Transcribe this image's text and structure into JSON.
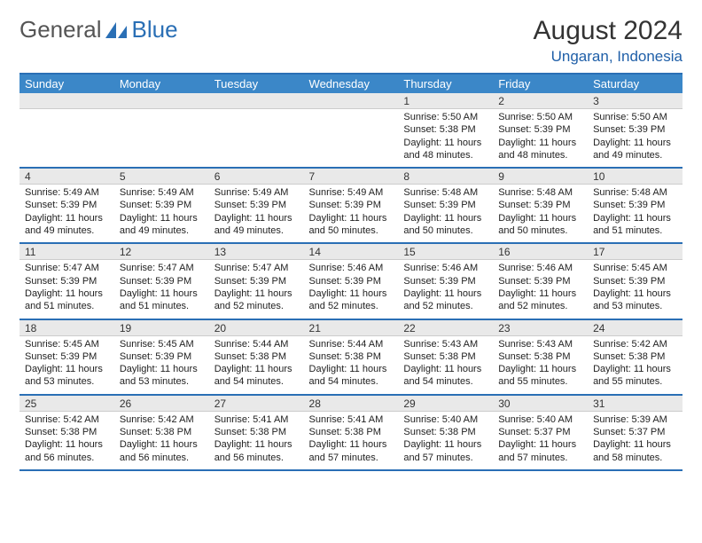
{
  "brand": {
    "part1": "General",
    "part2": "Blue",
    "logo_color": "#2a6fb5"
  },
  "title": {
    "month": "August 2024",
    "location": "Ungaran, Indonesia"
  },
  "colors": {
    "header_bg": "#3b87c8",
    "accent": "#2a6fb5",
    "daynum_bg": "#e9e9e9"
  },
  "day_headers": [
    "Sunday",
    "Monday",
    "Tuesday",
    "Wednesday",
    "Thursday",
    "Friday",
    "Saturday"
  ],
  "weeks": [
    [
      null,
      null,
      null,
      null,
      {
        "n": "1",
        "sr": "Sunrise: 5:50 AM",
        "ss": "Sunset: 5:38 PM",
        "d1": "Daylight: 11 hours",
        "d2": "and 48 minutes."
      },
      {
        "n": "2",
        "sr": "Sunrise: 5:50 AM",
        "ss": "Sunset: 5:39 PM",
        "d1": "Daylight: 11 hours",
        "d2": "and 48 minutes."
      },
      {
        "n": "3",
        "sr": "Sunrise: 5:50 AM",
        "ss": "Sunset: 5:39 PM",
        "d1": "Daylight: 11 hours",
        "d2": "and 49 minutes."
      }
    ],
    [
      {
        "n": "4",
        "sr": "Sunrise: 5:49 AM",
        "ss": "Sunset: 5:39 PM",
        "d1": "Daylight: 11 hours",
        "d2": "and 49 minutes."
      },
      {
        "n": "5",
        "sr": "Sunrise: 5:49 AM",
        "ss": "Sunset: 5:39 PM",
        "d1": "Daylight: 11 hours",
        "d2": "and 49 minutes."
      },
      {
        "n": "6",
        "sr": "Sunrise: 5:49 AM",
        "ss": "Sunset: 5:39 PM",
        "d1": "Daylight: 11 hours",
        "d2": "and 49 minutes."
      },
      {
        "n": "7",
        "sr": "Sunrise: 5:49 AM",
        "ss": "Sunset: 5:39 PM",
        "d1": "Daylight: 11 hours",
        "d2": "and 50 minutes."
      },
      {
        "n": "8",
        "sr": "Sunrise: 5:48 AM",
        "ss": "Sunset: 5:39 PM",
        "d1": "Daylight: 11 hours",
        "d2": "and 50 minutes."
      },
      {
        "n": "9",
        "sr": "Sunrise: 5:48 AM",
        "ss": "Sunset: 5:39 PM",
        "d1": "Daylight: 11 hours",
        "d2": "and 50 minutes."
      },
      {
        "n": "10",
        "sr": "Sunrise: 5:48 AM",
        "ss": "Sunset: 5:39 PM",
        "d1": "Daylight: 11 hours",
        "d2": "and 51 minutes."
      }
    ],
    [
      {
        "n": "11",
        "sr": "Sunrise: 5:47 AM",
        "ss": "Sunset: 5:39 PM",
        "d1": "Daylight: 11 hours",
        "d2": "and 51 minutes."
      },
      {
        "n": "12",
        "sr": "Sunrise: 5:47 AM",
        "ss": "Sunset: 5:39 PM",
        "d1": "Daylight: 11 hours",
        "d2": "and 51 minutes."
      },
      {
        "n": "13",
        "sr": "Sunrise: 5:47 AM",
        "ss": "Sunset: 5:39 PM",
        "d1": "Daylight: 11 hours",
        "d2": "and 52 minutes."
      },
      {
        "n": "14",
        "sr": "Sunrise: 5:46 AM",
        "ss": "Sunset: 5:39 PM",
        "d1": "Daylight: 11 hours",
        "d2": "and 52 minutes."
      },
      {
        "n": "15",
        "sr": "Sunrise: 5:46 AM",
        "ss": "Sunset: 5:39 PM",
        "d1": "Daylight: 11 hours",
        "d2": "and 52 minutes."
      },
      {
        "n": "16",
        "sr": "Sunrise: 5:46 AM",
        "ss": "Sunset: 5:39 PM",
        "d1": "Daylight: 11 hours",
        "d2": "and 52 minutes."
      },
      {
        "n": "17",
        "sr": "Sunrise: 5:45 AM",
        "ss": "Sunset: 5:39 PM",
        "d1": "Daylight: 11 hours",
        "d2": "and 53 minutes."
      }
    ],
    [
      {
        "n": "18",
        "sr": "Sunrise: 5:45 AM",
        "ss": "Sunset: 5:39 PM",
        "d1": "Daylight: 11 hours",
        "d2": "and 53 minutes."
      },
      {
        "n": "19",
        "sr": "Sunrise: 5:45 AM",
        "ss": "Sunset: 5:39 PM",
        "d1": "Daylight: 11 hours",
        "d2": "and 53 minutes."
      },
      {
        "n": "20",
        "sr": "Sunrise: 5:44 AM",
        "ss": "Sunset: 5:38 PM",
        "d1": "Daylight: 11 hours",
        "d2": "and 54 minutes."
      },
      {
        "n": "21",
        "sr": "Sunrise: 5:44 AM",
        "ss": "Sunset: 5:38 PM",
        "d1": "Daylight: 11 hours",
        "d2": "and 54 minutes."
      },
      {
        "n": "22",
        "sr": "Sunrise: 5:43 AM",
        "ss": "Sunset: 5:38 PM",
        "d1": "Daylight: 11 hours",
        "d2": "and 54 minutes."
      },
      {
        "n": "23",
        "sr": "Sunrise: 5:43 AM",
        "ss": "Sunset: 5:38 PM",
        "d1": "Daylight: 11 hours",
        "d2": "and 55 minutes."
      },
      {
        "n": "24",
        "sr": "Sunrise: 5:42 AM",
        "ss": "Sunset: 5:38 PM",
        "d1": "Daylight: 11 hours",
        "d2": "and 55 minutes."
      }
    ],
    [
      {
        "n": "25",
        "sr": "Sunrise: 5:42 AM",
        "ss": "Sunset: 5:38 PM",
        "d1": "Daylight: 11 hours",
        "d2": "and 56 minutes."
      },
      {
        "n": "26",
        "sr": "Sunrise: 5:42 AM",
        "ss": "Sunset: 5:38 PM",
        "d1": "Daylight: 11 hours",
        "d2": "and 56 minutes."
      },
      {
        "n": "27",
        "sr": "Sunrise: 5:41 AM",
        "ss": "Sunset: 5:38 PM",
        "d1": "Daylight: 11 hours",
        "d2": "and 56 minutes."
      },
      {
        "n": "28",
        "sr": "Sunrise: 5:41 AM",
        "ss": "Sunset: 5:38 PM",
        "d1": "Daylight: 11 hours",
        "d2": "and 57 minutes."
      },
      {
        "n": "29",
        "sr": "Sunrise: 5:40 AM",
        "ss": "Sunset: 5:38 PM",
        "d1": "Daylight: 11 hours",
        "d2": "and 57 minutes."
      },
      {
        "n": "30",
        "sr": "Sunrise: 5:40 AM",
        "ss": "Sunset: 5:37 PM",
        "d1": "Daylight: 11 hours",
        "d2": "and 57 minutes."
      },
      {
        "n": "31",
        "sr": "Sunrise: 5:39 AM",
        "ss": "Sunset: 5:37 PM",
        "d1": "Daylight: 11 hours",
        "d2": "and 58 minutes."
      }
    ]
  ]
}
